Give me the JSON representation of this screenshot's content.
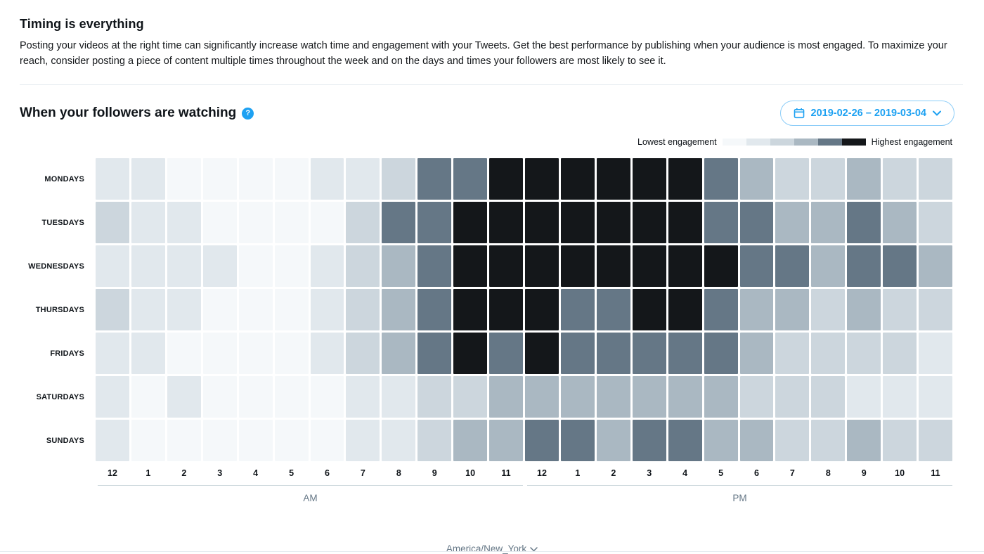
{
  "header": {
    "title": "Timing is everything",
    "description": "Posting your videos at the right time can significantly increase watch time and engagement with your Tweets. Get the best performance by publishing when your audience is most engaged. To maximize your reach, consider posting a piece of content multiple times throughout the week and on the days and times your followers are most likely to see it."
  },
  "section": {
    "heading": "When your followers are watching",
    "help_icon": "question-mark-circle"
  },
  "date_picker": {
    "label": "2019-02-26 – 2019-03-04",
    "icons": [
      "calendar-icon",
      "chevron-down-icon"
    ]
  },
  "legend": {
    "low_label": "Lowest engagement",
    "high_label": "Highest engagement",
    "palette": [
      "#f5f8fa",
      "#e1e8ed",
      "#ccd6dd",
      "#aab8c2",
      "#657786",
      "#14171a"
    ]
  },
  "chart_data": {
    "type": "heatmap",
    "title": "When your followers are watching",
    "x_label_groups": [
      "AM",
      "PM"
    ],
    "hour_labels": [
      "12",
      "1",
      "2",
      "3",
      "4",
      "5",
      "6",
      "7",
      "8",
      "9",
      "10",
      "11",
      "12",
      "1",
      "2",
      "3",
      "4",
      "5",
      "6",
      "7",
      "8",
      "9",
      "10",
      "11"
    ],
    "day_labels": [
      "MONDAYS",
      "TUESDAYS",
      "WEDNESDAYS",
      "THURSDAYS",
      "FRIDAYS",
      "SATURDAYS",
      "SUNDAYS"
    ],
    "value_scale": "engagement level, 0 = lowest, 5 = highest",
    "values": [
      [
        1,
        1,
        0,
        0,
        0,
        0,
        1,
        1,
        2,
        4,
        4,
        5,
        5,
        5,
        5,
        5,
        5,
        4,
        3,
        2,
        2,
        3,
        2,
        2
      ],
      [
        2,
        1,
        1,
        0,
        0,
        0,
        0,
        2,
        4,
        4,
        5,
        5,
        5,
        5,
        5,
        5,
        5,
        4,
        4,
        3,
        3,
        4,
        3,
        2
      ],
      [
        1,
        1,
        1,
        1,
        0,
        0,
        1,
        2,
        3,
        4,
        5,
        5,
        5,
        5,
        5,
        5,
        5,
        5,
        4,
        4,
        3,
        4,
        4,
        3
      ],
      [
        2,
        1,
        1,
        0,
        0,
        0,
        1,
        2,
        3,
        4,
        5,
        5,
        5,
        4,
        4,
        5,
        5,
        4,
        3,
        3,
        2,
        3,
        2,
        2
      ],
      [
        1,
        1,
        0,
        0,
        0,
        0,
        1,
        2,
        3,
        4,
        5,
        4,
        5,
        4,
        4,
        4,
        4,
        4,
        3,
        2,
        2,
        2,
        2,
        1
      ],
      [
        1,
        0,
        1,
        0,
        0,
        0,
        0,
        1,
        1,
        2,
        2,
        3,
        3,
        3,
        3,
        3,
        3,
        3,
        2,
        2,
        2,
        1,
        1,
        1
      ],
      [
        1,
        0,
        0,
        0,
        0,
        0,
        0,
        1,
        1,
        2,
        3,
        3,
        4,
        4,
        3,
        4,
        4,
        3,
        3,
        2,
        2,
        3,
        2,
        2
      ]
    ]
  },
  "footer": {
    "am_label": "AM",
    "pm_label": "PM",
    "timezone_label": "America/New_York"
  }
}
